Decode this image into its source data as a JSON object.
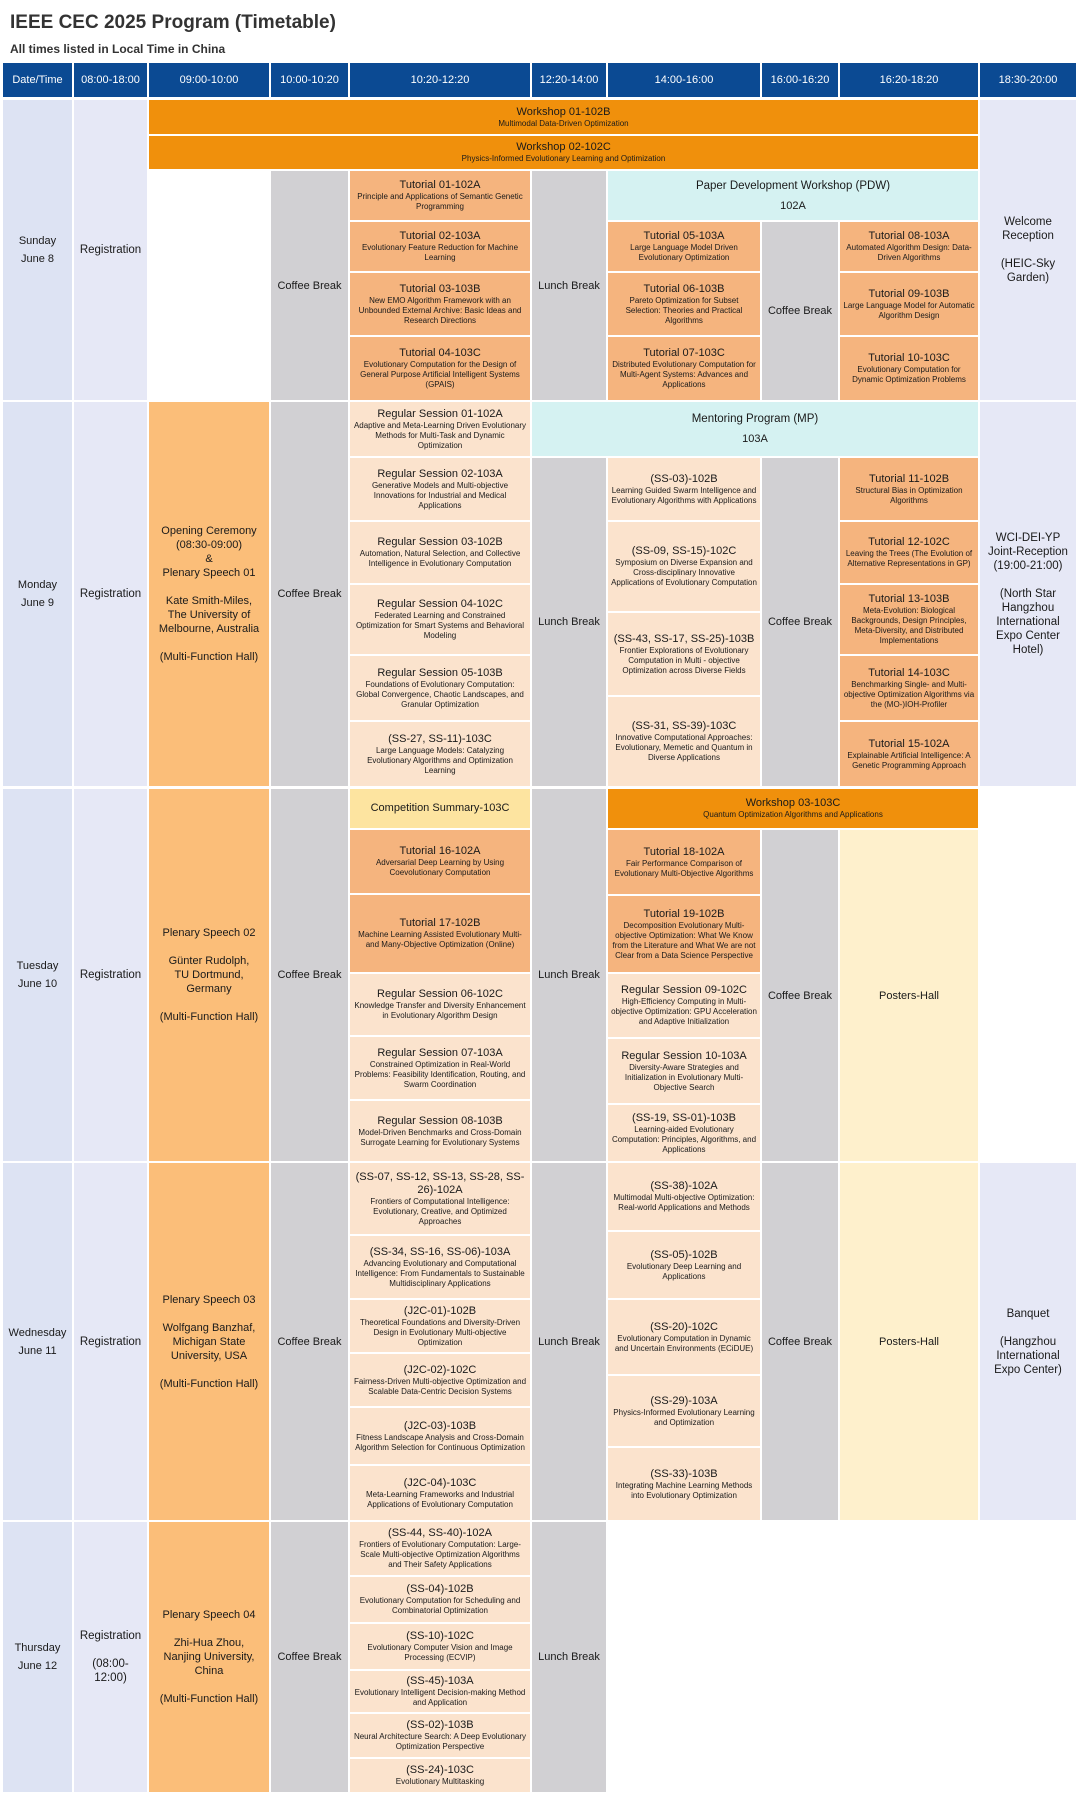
{
  "header": {
    "title": "IEEE CEC 2025 Program (Timetable)",
    "subtitle": "All times listed in Local Time in China"
  },
  "columns": [
    "Date/Time",
    "08:00-18:00",
    "09:00-10:00",
    "10:00-10:20",
    "10:20-12:20",
    "12:20-14:00",
    "14:00-16:00",
    "16:00-16:20",
    "16:20-18:20",
    "18:30-20:00"
  ],
  "common": {
    "coffee": "Coffee Break",
    "lunch": "Lunch Break",
    "posters": "Posters-Hall",
    "registration": "Registration"
  },
  "colors": {
    "header": "#0b4a93",
    "workshop": "#f0900c",
    "tutorial": "#f5b47e",
    "regular": "#fbe3cd",
    "break": "#d1d0d3",
    "program": "#d5f2f2",
    "plenary": "#fbbe79",
    "posters": "#fef0cc",
    "date": "#dde3f3"
  },
  "days": {
    "sun": {
      "day": "Sunday",
      "date": "June 8",
      "ws1": {
        "t": "Workshop 01-102B",
        "s": "Multimodal Data-Driven Optimization"
      },
      "ws2": {
        "t": "Workshop 02-102C",
        "s": "Physics-Informed Evolutionary Learning and Optimization"
      },
      "t01": {
        "t": "Tutorial 01-102A",
        "s": "Principle and Applications of Semantic Genetic Programming"
      },
      "t02": {
        "t": "Tutorial 02-103A",
        "s": "Evolutionary Feature Reduction for Machine Learning"
      },
      "t03": {
        "t": "Tutorial 03-103B",
        "s": "New EMO Algorithm Framework with an Unbounded External Archive: Basic Ideas and Research Directions"
      },
      "t04": {
        "t": "Tutorial 04-103C",
        "s": "Evolutionary Computation for the Design of General Purpose Artificial Intelligent Systems (GPAIS)"
      },
      "pdw": {
        "t": "Paper Development Workshop (PDW)",
        "s": "102A"
      },
      "t05": {
        "t": "Tutorial 05-103A",
        "s": "Large Language Model Driven Evolutionary Optimization"
      },
      "t06": {
        "t": "Tutorial 06-103B",
        "s": "Pareto Optimization for Subset Selection: Theories and Practical Algorithms"
      },
      "t07": {
        "t": "Tutorial 07-103C",
        "s": "Distributed Evolutionary Computation for Multi-Agent Systems: Advances and Applications"
      },
      "t08": {
        "t": "Tutorial 08-103A",
        "s": "Automated Algorithm Design: Data-Driven Algorithms"
      },
      "t09": {
        "t": "Tutorial 09-103B",
        "s": "Large Language Model for Automatic Algorithm Design"
      },
      "t10": {
        "t": "Tutorial 10-103C",
        "s": "Evolutionary Computation for Dynamic Optimization Problems"
      },
      "evening": "Welcome\nReception\n\n(HEIC-Sky\nGarden)"
    },
    "mon": {
      "day": "Monday",
      "date": "June 9",
      "plenary": "Opening Ceremony\n(08:30-09:00)\n&\nPlenary Speech 01\n\nKate Smith-Miles,\nThe University of\nMelbourne, Australia\n\n(Multi-Function Hall)",
      "rs01": {
        "t": "Regular Session 01-102A",
        "s": "Adaptive and Meta-Learning Driven Evolutionary Methods for Multi-Task and Dynamic Optimization"
      },
      "rs02": {
        "t": "Regular Session 02-103A",
        "s": "Generative Models and Multi-objective Innovations for Industrial and Medical Applications"
      },
      "rs03": {
        "t": "Regular Session 03-102B",
        "s": "Automation, Natural Selection, and Collective Intelligence in Evolutionary Computation"
      },
      "rs04": {
        "t": "Regular Session 04-102C",
        "s": "Federated Learning and Constrained Optimization for Smart Systems and Behavioral Modeling"
      },
      "rs05": {
        "t": "Regular Session 05-103B",
        "s": "Foundations of Evolutionary Computation: Global Convergence, Chaotic Landscapes, and Granular Optimization"
      },
      "ss27": {
        "t": "(SS-27, SS-11)-103C",
        "s": "Large Language Models: Catalyzing Evolutionary Algorithms and Optimization Learning"
      },
      "mp": {
        "t": "Mentoring Program (MP)",
        "s": "103A"
      },
      "ss03": {
        "t": "(SS-03)-102B",
        "s": "Learning Guided Swarm Intelligence and Evolutionary Algorithms with Applications"
      },
      "ss09": {
        "t": "(SS-09, SS-15)-102C",
        "s": "Symposium on Diverse Expansion and Cross-disciplinary Innovative Applications of Evolutionary Computation"
      },
      "ss43": {
        "t": "(SS-43, SS-17, SS-25)-103B",
        "s": "Frontier Explorations of Evolutionary Computation in Multi - objective Optimization across Diverse Fields"
      },
      "ss31": {
        "t": "(SS-31, SS-39)-103C",
        "s": "Innovative Computational Approaches: Evolutionary, Memetic and Quantum in Diverse Applications"
      },
      "t11": {
        "t": "Tutorial 11-102B",
        "s": "Structural Bias in Optimization Algorithms"
      },
      "t12": {
        "t": "Tutorial 12-102C",
        "s": "Leaving the Trees (The Evolution of Alternative Representations in GP)"
      },
      "t13": {
        "t": "Tutorial 13-103B",
        "s": "Meta-Evolution: Biological Backgrounds, Design Principles, Meta-Diversity, and Distributed Implementations"
      },
      "t14": {
        "t": "Tutorial 14-103C",
        "s": "Benchmarking Single- and Multi-objective Optimization Algorithms via the (MO-)IOH-Profiler"
      },
      "t15": {
        "t": "Tutorial 15-102A",
        "s": "Explainable Artificial Intelligence: A Genetic Programming Approach"
      },
      "evening": "WCI-DEI-YP\nJoint-Reception\n(19:00-21:00)\n\n(North Star\nHangzhou\nInternational\nExpo Center\nHotel)"
    },
    "tue": {
      "day": "Tuesday",
      "date": "June 10",
      "plenary": "Plenary Speech 02\n\nGünter Rudolph,\nTU Dortmund,\nGermany\n\n(Multi-Function Hall)",
      "comp": {
        "t": "Competition Summary-103C",
        "s": ""
      },
      "t16": {
        "t": "Tutorial 16-102A",
        "s": "Adversarial Deep Learning by Using Coevolutionary Computation"
      },
      "t17": {
        "t": "Tutorial 17-102B",
        "s": "Machine Learning Assisted Evolutionary Multi- and Many-Objective Optimization (Online)"
      },
      "rs06": {
        "t": "Regular Session 06-102C",
        "s": "Knowledge Transfer and Diversity Enhancement in Evolutionary Algorithm Design"
      },
      "rs07": {
        "t": "Regular Session 07-103A",
        "s": "Constrained Optimization in Real-World Problems: Feasibility Identification, Routing, and Swarm Coordination"
      },
      "rs08": {
        "t": "Regular Session 08-103B",
        "s": "Model-Driven Benchmarks and Cross-Domain Surrogate Learning for Evolutionary Systems"
      },
      "ws3": {
        "t": "Workshop 03-103C",
        "s": "Quantum Optimization Algorithms and Applications"
      },
      "t18": {
        "t": "Tutorial 18-102A",
        "s": "Fair Performance Comparison of Evolutionary Multi-Objective Algorithms"
      },
      "t19": {
        "t": "Tutorial 19-102B",
        "s": "Decomposition Evolutionary Multi-objective Optimization: What We Know from the Literature and What We are not Clear from a Data Science Perspective"
      },
      "rs09": {
        "t": "Regular Session 09-102C",
        "s": "High-Efficiency Computing in Multi-objective Optimization: GPU Acceleration and Adaptive Initialization"
      },
      "rs10": {
        "t": "Regular Session 10-103A",
        "s": "Diversity-Aware Strategies and Initialization in Evolutionary Multi-Objective Search"
      },
      "ss19": {
        "t": "(SS-19, SS-01)-103B",
        "s": "Learning-aided Evolutionary Computation: Principles, Algorithms, and Applications"
      }
    },
    "wed": {
      "day": "Wednesday",
      "date": "June 11",
      "plenary": "Plenary Speech 03\n\nWolfgang Banzhaf,\nMichigan State\nUniversity, USA\n\n(Multi-Function Hall)",
      "ss07": {
        "t": "(SS-07, SS-12, SS-13, SS-28, SS-26)-102A",
        "s": "Frontiers of Computational Intelligence: Evolutionary, Creative, and Optimized Approaches"
      },
      "ss34": {
        "t": "(SS-34, SS-16, SS-06)-103A",
        "s": "Advancing Evolutionary and Computational Intelligence: From Fundamentals to Sustainable Multidisciplinary Applications"
      },
      "j01": {
        "t": "(J2C-01)-102B",
        "s": "Theoretical Foundations and Diversity-Driven Design in Evolutionary Multi-objective Optimization"
      },
      "j02": {
        "t": "(J2C-02)-102C",
        "s": "Fairness-Driven Multi-objective Optimization and Scalable Data-Centric Decision Systems"
      },
      "j03": {
        "t": "(J2C-03)-103B",
        "s": "Fitness Landscape Analysis and Cross-Domain Algorithm Selection for Continuous Optimization"
      },
      "j04": {
        "t": "(J2C-04)-103C",
        "s": "Meta-Learning Frameworks and Industrial Applications of Evolutionary Computation"
      },
      "ss38": {
        "t": "(SS-38)-102A",
        "s": "Multimodal Multi-objective Optimization: Real-world Applications and Methods"
      },
      "ss05": {
        "t": "(SS-05)-102B",
        "s": "Evolutionary Deep Learning and Applications"
      },
      "ss20": {
        "t": "(SS-20)-102C",
        "s": "Evolutionary Computation in Dynamic and Uncertain Environments (ECiDUE)"
      },
      "ss29": {
        "t": "(SS-29)-103A",
        "s": "Physics-Informed Evolutionary Learning and Optimization"
      },
      "ss33": {
        "t": "(SS-33)-103B",
        "s": "Integrating Machine Learning Methods into Evolutionary Optimization"
      },
      "evening": "Banquet\n\n(Hangzhou\nInternational\nExpo Center)"
    },
    "thu": {
      "day": "Thursday",
      "date": "June 12",
      "registration": "Registration\n\n(08:00-12:00)",
      "plenary": "Plenary Speech 04\n\nZhi-Hua Zhou,\nNanjing University,\nChina\n\n(Multi-Function Hall)",
      "ss44": {
        "t": "(SS-44, SS-40)-102A",
        "s": "Frontiers of Evolutionary Computation: Large-Scale Multi-objective Optimization Algorithms and Their Safety Applications"
      },
      "ss04": {
        "t": "(SS-04)-102B",
        "s": "Evolutionary Computation for Scheduling and Combinatorial Optimization"
      },
      "ss10": {
        "t": "(SS-10)-102C",
        "s": "Evolutionary Computer Vision and Image Processing (ECVIP)"
      },
      "ss45": {
        "t": "(SS-45)-103A",
        "s": "Evolutionary Intelligent Decision-making Method and Application"
      },
      "ss02": {
        "t": "(SS-02)-103B",
        "s": "Neural Architecture Search: A Deep Evolutionary Optimization Perspective"
      },
      "ss24": {
        "t": "(SS-24)-103C",
        "s": "Evolutionary Multitasking"
      }
    }
  }
}
